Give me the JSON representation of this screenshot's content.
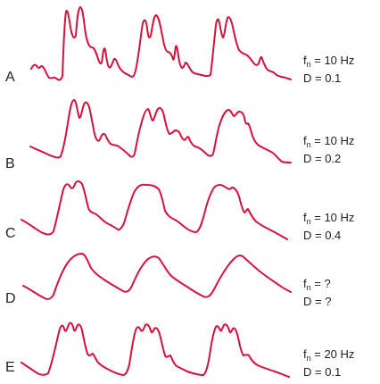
{
  "rows": [
    {
      "letter": "A",
      "f_label": "f",
      "f_sub": "n",
      "f_value": " = 10 Hz",
      "d_value": "D = 0.1"
    },
    {
      "letter": "B",
      "f_label": "f",
      "f_sub": "n",
      "f_value": " = 10 Hz",
      "d_value": "D = 0.2"
    },
    {
      "letter": "C",
      "f_label": "f",
      "f_sub": "n",
      "f_value": " = 10 Hz",
      "d_value": "D = 0.4"
    },
    {
      "letter": "D",
      "f_label": "f",
      "f_sub": "n",
      "f_value": " = ?",
      "d_value": "D = ?"
    },
    {
      "letter": "E",
      "f_label": "f",
      "f_sub": "n",
      "f_value": " = 20 Hz",
      "d_value": "D = 0.1"
    }
  ],
  "colors": {
    "waveform": "#d6123c",
    "text": "#222222"
  }
}
